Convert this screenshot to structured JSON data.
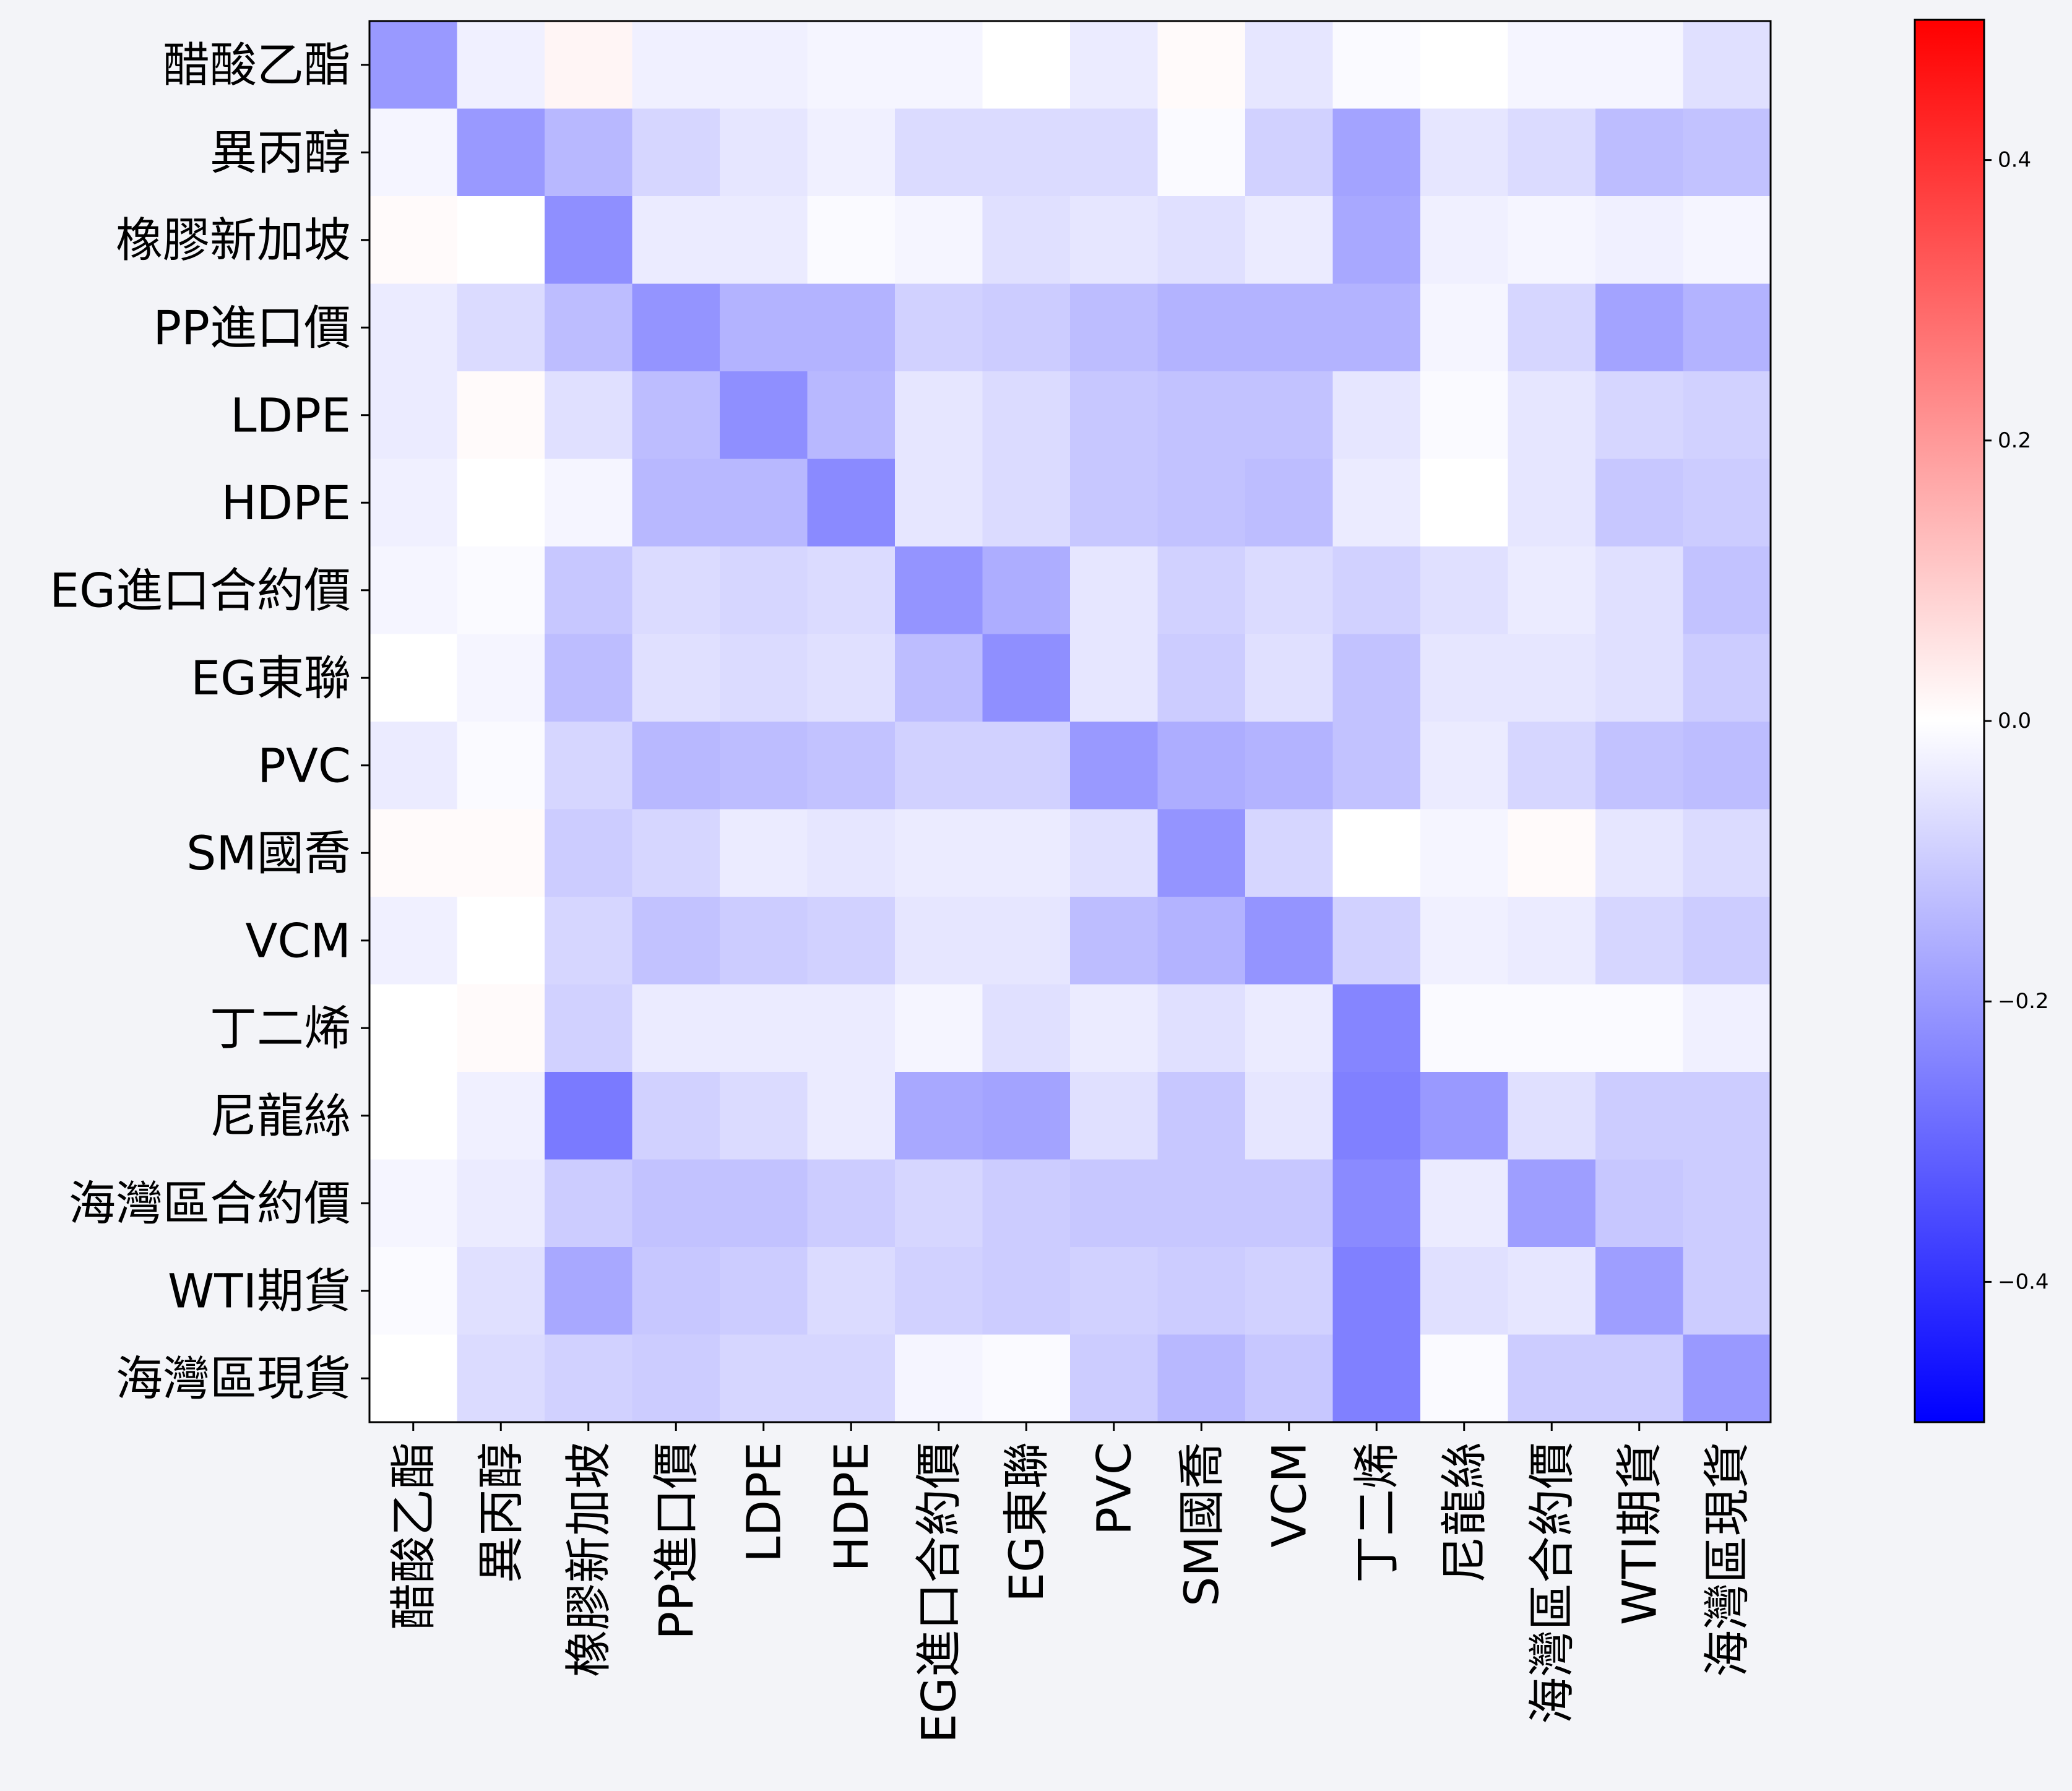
{
  "chart_data": {
    "type": "heatmap",
    "title": "",
    "xlabel": "",
    "ylabel": "",
    "colormap": "bwr",
    "vmin": -0.5,
    "vmax": 0.5,
    "highlight_label": "SM國喬",
    "highlight_color": "#ff0000",
    "labels": [
      "醋酸乙酯",
      "異丙醇",
      "橡膠新加坡",
      "PP進口價",
      "LDPE",
      "HDPE",
      "EG進口合約價",
      "EG東聯",
      "PVC",
      "SM國喬",
      "VCM",
      "丁二烯",
      "尼龍絲",
      "海灣區合約價",
      "WTI期貨",
      "海灣區現貨"
    ],
    "colorbar_ticks": [
      {
        "value": 0.4,
        "label": "0.4"
      },
      {
        "value": 0.2,
        "label": "0.2"
      },
      {
        "value": 0.0,
        "label": "0.0"
      },
      {
        "value": -0.2,
        "label": "−0.2"
      },
      {
        "value": -0.4,
        "label": "−0.4"
      }
    ],
    "matrix": [
      [
        -0.2,
        -0.03,
        0.02,
        -0.03,
        -0.03,
        -0.02,
        -0.02,
        0.0,
        -0.04,
        0.01,
        -0.05,
        -0.01,
        0.0,
        -0.02,
        -0.02,
        -0.06
      ],
      [
        -0.02,
        -0.2,
        -0.14,
        -0.08,
        -0.05,
        -0.03,
        -0.07,
        -0.07,
        -0.07,
        -0.01,
        -0.09,
        -0.18,
        -0.05,
        -0.07,
        -0.13,
        -0.12
      ],
      [
        0.01,
        0.0,
        -0.22,
        -0.04,
        -0.04,
        -0.01,
        -0.02,
        -0.06,
        -0.05,
        -0.06,
        -0.04,
        -0.17,
        -0.03,
        -0.02,
        -0.03,
        -0.02
      ],
      [
        -0.04,
        -0.07,
        -0.13,
        -0.21,
        -0.15,
        -0.15,
        -0.09,
        -0.1,
        -0.13,
        -0.15,
        -0.15,
        -0.15,
        -0.02,
        -0.08,
        -0.18,
        -0.15
      ],
      [
        -0.04,
        0.01,
        -0.06,
        -0.13,
        -0.22,
        -0.14,
        -0.05,
        -0.07,
        -0.11,
        -0.12,
        -0.12,
        -0.05,
        -0.01,
        -0.05,
        -0.08,
        -0.09
      ],
      [
        -0.03,
        0.0,
        -0.02,
        -0.14,
        -0.14,
        -0.23,
        -0.05,
        -0.07,
        -0.11,
        -0.12,
        -0.13,
        -0.04,
        0.0,
        -0.05,
        -0.11,
        -0.1
      ],
      [
        -0.02,
        -0.01,
        -0.11,
        -0.07,
        -0.08,
        -0.07,
        -0.21,
        -0.16,
        -0.05,
        -0.09,
        -0.07,
        -0.09,
        -0.06,
        -0.04,
        -0.06,
        -0.12
      ],
      [
        0.0,
        -0.02,
        -0.13,
        -0.06,
        -0.07,
        -0.06,
        -0.13,
        -0.22,
        -0.05,
        -0.1,
        -0.06,
        -0.12,
        -0.05,
        -0.05,
        -0.06,
        -0.1
      ],
      [
        -0.04,
        -0.01,
        -0.08,
        -0.14,
        -0.13,
        -0.12,
        -0.09,
        -0.09,
        -0.2,
        -0.16,
        -0.15,
        -0.12,
        -0.04,
        -0.08,
        -0.12,
        -0.13
      ],
      [
        0.01,
        0.01,
        -0.1,
        -0.08,
        -0.04,
        -0.05,
        -0.04,
        -0.04,
        -0.06,
        -0.21,
        -0.08,
        0.0,
        -0.02,
        0.01,
        -0.05,
        -0.07
      ],
      [
        -0.03,
        0.0,
        -0.08,
        -0.12,
        -0.1,
        -0.09,
        -0.05,
        -0.05,
        -0.13,
        -0.15,
        -0.21,
        -0.09,
        -0.03,
        -0.04,
        -0.08,
        -0.1
      ],
      [
        0.0,
        0.01,
        -0.09,
        -0.04,
        -0.04,
        -0.04,
        -0.02,
        -0.06,
        -0.04,
        -0.06,
        -0.04,
        -0.24,
        -0.01,
        -0.01,
        -0.01,
        -0.03
      ],
      [
        0.0,
        -0.03,
        -0.26,
        -0.09,
        -0.07,
        -0.04,
        -0.17,
        -0.18,
        -0.06,
        -0.11,
        -0.05,
        -0.25,
        -0.2,
        -0.06,
        -0.1,
        -0.1
      ],
      [
        -0.02,
        -0.04,
        -0.1,
        -0.12,
        -0.12,
        -0.1,
        -0.08,
        -0.1,
        -0.11,
        -0.11,
        -0.11,
        -0.23,
        -0.04,
        -0.19,
        -0.11,
        -0.1
      ],
      [
        -0.01,
        -0.06,
        -0.17,
        -0.11,
        -0.1,
        -0.07,
        -0.09,
        -0.1,
        -0.09,
        -0.1,
        -0.09,
        -0.25,
        -0.06,
        -0.05,
        -0.19,
        -0.1
      ],
      [
        0.0,
        -0.07,
        -0.09,
        -0.1,
        -0.08,
        -0.08,
        -0.02,
        -0.01,
        -0.1,
        -0.14,
        -0.11,
        -0.25,
        -0.01,
        -0.1,
        -0.1,
        -0.2
      ]
    ]
  }
}
